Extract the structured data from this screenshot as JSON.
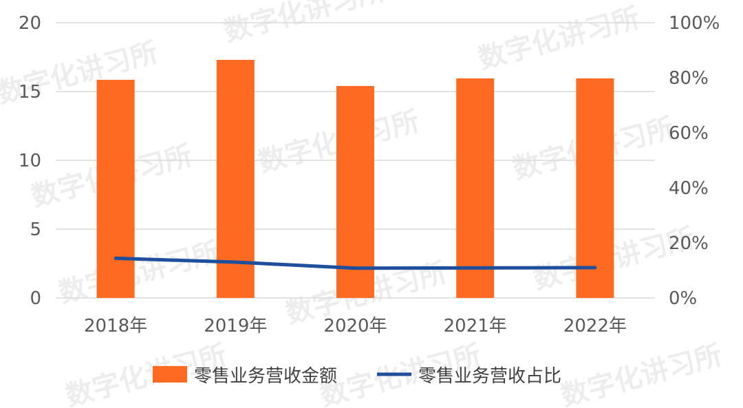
{
  "chart_data": {
    "type": "bar+line",
    "categories": [
      "2018年",
      "2019年",
      "2020年",
      "2021年",
      "2022年"
    ],
    "series": [
      {
        "name": "零售业务营收金额",
        "type": "bar",
        "axis": "left",
        "color": "#FF6A22",
        "values": [
          15.85,
          17.3,
          15.4,
          15.95,
          15.95
        ]
      },
      {
        "name": "零售业务营收占比",
        "type": "line",
        "axis": "right",
        "color": "#1F4E9C",
        "values": [
          14.4,
          13.0,
          10.8,
          10.9,
          11.0
        ]
      }
    ],
    "left_axis": {
      "ylim": [
        0,
        20
      ],
      "ticks": [
        "0",
        "5",
        "10",
        "15",
        "20"
      ]
    },
    "right_axis": {
      "ylim": [
        0,
        100
      ],
      "ticks": [
        "0%",
        "20%",
        "40%",
        "60%",
        "80%",
        "100%"
      ]
    },
    "grid": true,
    "legend_position": "bottom",
    "watermark": "数字化讲习所"
  }
}
